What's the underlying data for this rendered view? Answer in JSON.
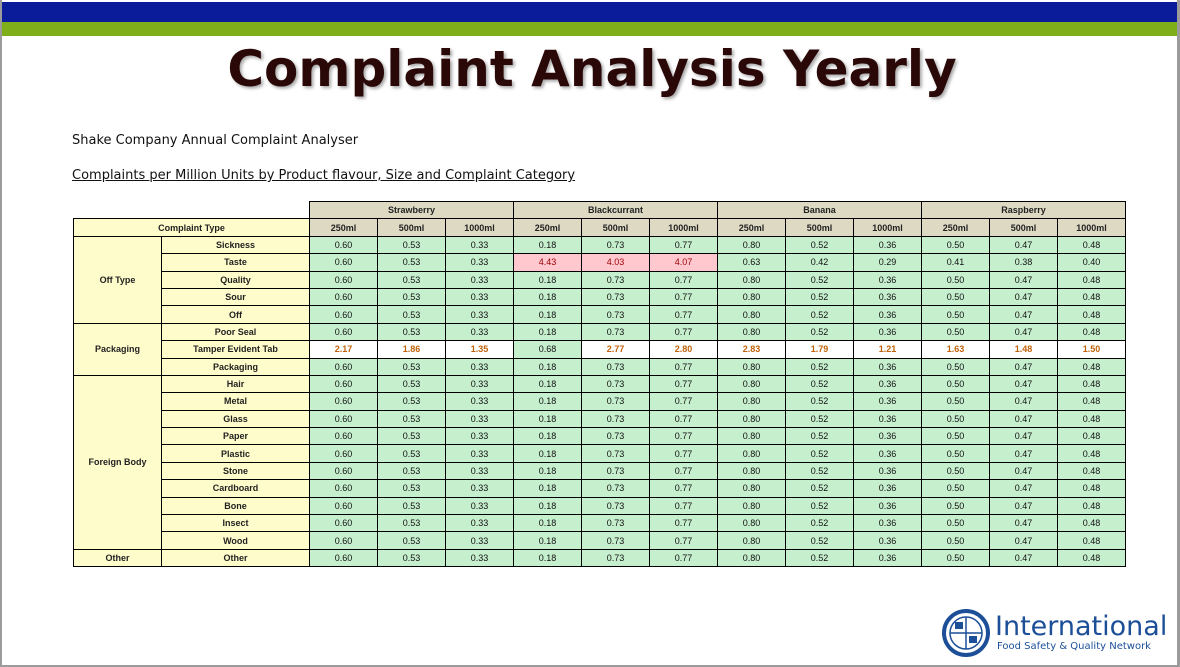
{
  "title": "Complaint Analysis Yearly",
  "subtitle": "Shake Company Annual Complaint Analyser",
  "heading": "Complaints per Million Units by Product flavour, Size and Complaint Category",
  "complaint_type_label": "Complaint Type",
  "flavours": [
    "Strawberry",
    "Blackcurrant",
    "Banana",
    "Raspberry"
  ],
  "sizes": [
    "250ml",
    "500ml",
    "1000ml"
  ],
  "rows": [
    {
      "group": "Off Type",
      "span": 5,
      "item": "Sickness",
      "values": [
        "0.60",
        "0.53",
        "0.33",
        "0.18",
        "0.73",
        "0.77",
        "0.80",
        "0.52",
        "0.36",
        "0.50",
        "0.47",
        "0.48"
      ]
    },
    {
      "item": "Taste",
      "values": [
        "0.60",
        "0.53",
        "0.33",
        "4.43",
        "4.03",
        "4.07",
        "0.63",
        "0.42",
        "0.29",
        "0.41",
        "0.38",
        "0.40"
      ],
      "styles": [
        "v",
        "v",
        "v",
        "red",
        "red",
        "red",
        "v",
        "v",
        "v",
        "v",
        "v",
        "v"
      ]
    },
    {
      "item": "Quality",
      "values": [
        "0.60",
        "0.53",
        "0.33",
        "0.18",
        "0.73",
        "0.77",
        "0.80",
        "0.52",
        "0.36",
        "0.50",
        "0.47",
        "0.48"
      ]
    },
    {
      "item": "Sour",
      "values": [
        "0.60",
        "0.53",
        "0.33",
        "0.18",
        "0.73",
        "0.77",
        "0.80",
        "0.52",
        "0.36",
        "0.50",
        "0.47",
        "0.48"
      ]
    },
    {
      "item": "Off",
      "values": [
        "0.60",
        "0.53",
        "0.33",
        "0.18",
        "0.73",
        "0.77",
        "0.80",
        "0.52",
        "0.36",
        "0.50",
        "0.47",
        "0.48"
      ]
    },
    {
      "group": "Packaging",
      "span": 3,
      "item": "Poor Seal",
      "values": [
        "0.60",
        "0.53",
        "0.33",
        "0.18",
        "0.73",
        "0.77",
        "0.80",
        "0.52",
        "0.36",
        "0.50",
        "0.47",
        "0.48"
      ]
    },
    {
      "item": "Tamper Evident Tab",
      "values": [
        "2.17",
        "1.86",
        "1.35",
        "0.68",
        "2.77",
        "2.80",
        "2.83",
        "1.79",
        "1.21",
        "1.63",
        "1.48",
        "1.50"
      ],
      "styles": [
        "white",
        "white",
        "white",
        "v",
        "white",
        "white",
        "white",
        "white",
        "white",
        "white",
        "white",
        "white"
      ]
    },
    {
      "item": "Packaging",
      "values": [
        "0.60",
        "0.53",
        "0.33",
        "0.18",
        "0.73",
        "0.77",
        "0.80",
        "0.52",
        "0.36",
        "0.50",
        "0.47",
        "0.48"
      ]
    },
    {
      "group": "Foreign Body",
      "span": 10,
      "item": "Hair",
      "values": [
        "0.60",
        "0.53",
        "0.33",
        "0.18",
        "0.73",
        "0.77",
        "0.80",
        "0.52",
        "0.36",
        "0.50",
        "0.47",
        "0.48"
      ]
    },
    {
      "item": "Metal",
      "values": [
        "0.60",
        "0.53",
        "0.33",
        "0.18",
        "0.73",
        "0.77",
        "0.80",
        "0.52",
        "0.36",
        "0.50",
        "0.47",
        "0.48"
      ]
    },
    {
      "item": "Glass",
      "values": [
        "0.60",
        "0.53",
        "0.33",
        "0.18",
        "0.73",
        "0.77",
        "0.80",
        "0.52",
        "0.36",
        "0.50",
        "0.47",
        "0.48"
      ]
    },
    {
      "item": "Paper",
      "values": [
        "0.60",
        "0.53",
        "0.33",
        "0.18",
        "0.73",
        "0.77",
        "0.80",
        "0.52",
        "0.36",
        "0.50",
        "0.47",
        "0.48"
      ]
    },
    {
      "item": "Plastic",
      "values": [
        "0.60",
        "0.53",
        "0.33",
        "0.18",
        "0.73",
        "0.77",
        "0.80",
        "0.52",
        "0.36",
        "0.50",
        "0.47",
        "0.48"
      ]
    },
    {
      "item": "Stone",
      "values": [
        "0.60",
        "0.53",
        "0.33",
        "0.18",
        "0.73",
        "0.77",
        "0.80",
        "0.52",
        "0.36",
        "0.50",
        "0.47",
        "0.48"
      ]
    },
    {
      "item": "Cardboard",
      "values": [
        "0.60",
        "0.53",
        "0.33",
        "0.18",
        "0.73",
        "0.77",
        "0.80",
        "0.52",
        "0.36",
        "0.50",
        "0.47",
        "0.48"
      ]
    },
    {
      "item": "Bone",
      "values": [
        "0.60",
        "0.53",
        "0.33",
        "0.18",
        "0.73",
        "0.77",
        "0.80",
        "0.52",
        "0.36",
        "0.50",
        "0.47",
        "0.48"
      ]
    },
    {
      "item": "Insect",
      "values": [
        "0.60",
        "0.53",
        "0.33",
        "0.18",
        "0.73",
        "0.77",
        "0.80",
        "0.52",
        "0.36",
        "0.50",
        "0.47",
        "0.48"
      ]
    },
    {
      "item": "Wood",
      "values": [
        "0.60",
        "0.53",
        "0.33",
        "0.18",
        "0.73",
        "0.77",
        "0.80",
        "0.52",
        "0.36",
        "0.50",
        "0.47",
        "0.48"
      ]
    },
    {
      "group": "Other",
      "span": 1,
      "item": "Other",
      "values": [
        "0.60",
        "0.53",
        "0.33",
        "0.18",
        "0.73",
        "0.77",
        "0.80",
        "0.52",
        "0.36",
        "0.50",
        "0.47",
        "0.48"
      ]
    }
  ],
  "colors": {
    "banner_blue": "#0a1c9a",
    "banner_green": "#7fae1b",
    "good": "#c6efce",
    "bad": "#ffc7ce",
    "header": "#ded9c3",
    "label": "#fffccb",
    "logo": "#1c4f98"
  },
  "logo": {
    "name": "International",
    "tagline": "Food Safety & Quality Network"
  }
}
